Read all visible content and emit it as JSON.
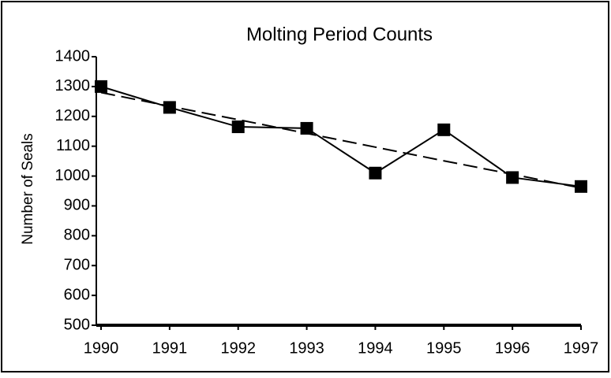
{
  "chart_data": {
    "type": "line",
    "title": "Molting Period Counts",
    "y_label": "Number of Seals",
    "x": [
      1990,
      1991,
      1992,
      1993,
      1994,
      1995,
      1996,
      1997
    ],
    "series": [
      {
        "color": "#000000",
        "style": "solid",
        "marker": "square",
        "values": [
          1300,
          1230,
          1165,
          1160,
          1010,
          1155,
          995,
          965
        ]
      },
      {
        "color": "#000000",
        "style": "dashed",
        "values": [
          1280,
          1234,
          1189,
          1143,
          1097,
          1051,
          1006,
          960
        ]
      }
    ],
    "xlim": [
      1990,
      1997
    ],
    "xticks": [
      1990,
      1991,
      1992,
      1993,
      1994,
      1995,
      1996,
      1997
    ],
    "ylim": [
      500,
      1400
    ],
    "yticks": [
      500,
      600,
      700,
      800,
      900,
      1000,
      1100,
      1200,
      1300,
      1400
    ],
    "grid": false
  }
}
